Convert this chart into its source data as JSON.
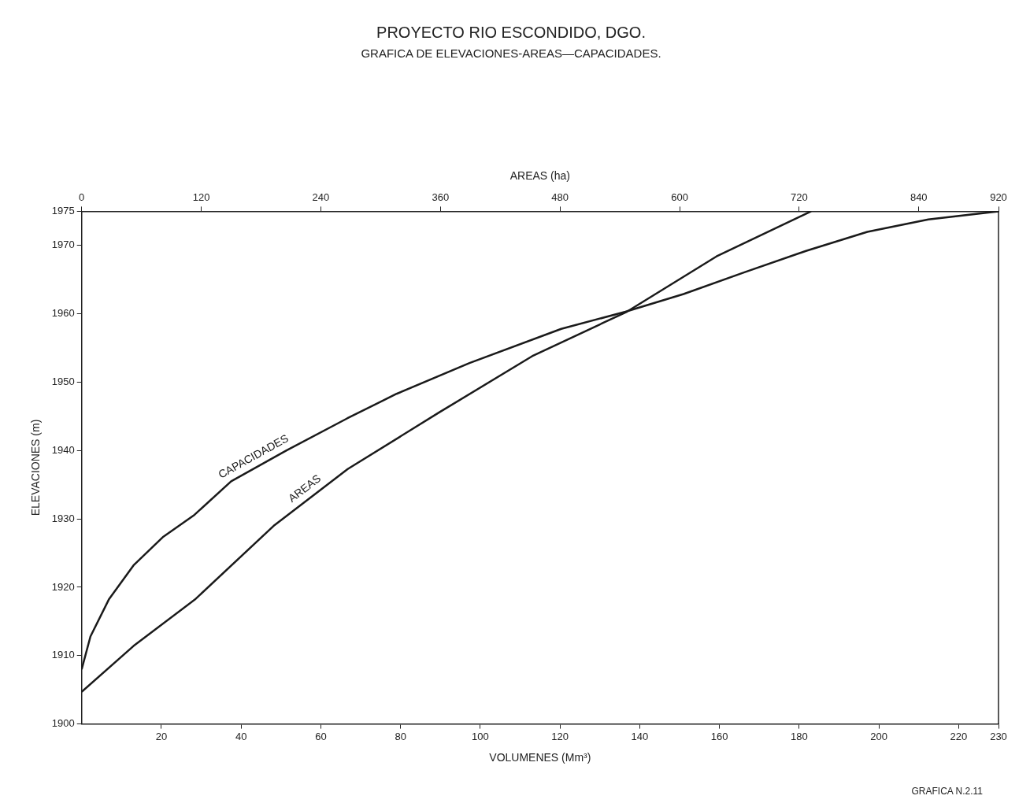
{
  "chart_data": {
    "type": "line",
    "title": "PROYECTO RIO ESCONDIDO, DGO.",
    "subtitle": "GRAFICA DE ELEVACIONES-AREAS—CAPACIDADES.",
    "xlabel": "VOLUMENES (Mm³)",
    "x2label": "AREAS (ha)",
    "ylabel": "ELEVACIONES (m)",
    "series": [
      {
        "name": "CAPACIDADES",
        "color": "#1a1a1a",
        "x": [
          0,
          2.2,
          6.8,
          13,
          20.5,
          28.3,
          37.5,
          51.3,
          66.6,
          79,
          97.3,
          120.3,
          136.4,
          151,
          166.4,
          181.7,
          197.1,
          212.4,
          230
        ],
        "values": [
          1908,
          1912.8,
          1918.2,
          1923.2,
          1927.4,
          1930.6,
          1935.5,
          1940,
          1944.7,
          1948.3,
          1952.8,
          1957.8,
          1960.3,
          1962.9,
          1966.1,
          1969.2,
          1972,
          1973.8,
          1975
        ]
      },
      {
        "name": "AREAS",
        "color": "#1a1a1a",
        "axis": "x2",
        "x": [
          0,
          52,
          113.6,
          193.6,
          267,
          359,
          452,
          547,
          637,
          732
        ],
        "values": [
          1904.7,
          1911.4,
          1918.2,
          1929.1,
          1937.3,
          1945.6,
          1953.8,
          1960.3,
          1968.4,
          1975
        ]
      }
    ],
    "xlim": [
      0,
      230
    ],
    "xticks": [
      20,
      40,
      60,
      80,
      100,
      120,
      140,
      160,
      180,
      200,
      220,
      230
    ],
    "x2lim": [
      0,
      920
    ],
    "x2ticks": [
      0,
      120,
      240,
      360,
      480,
      600,
      720,
      840,
      920
    ],
    "ylim": [
      1900,
      1975
    ],
    "yticks": [
      1900,
      1910,
      1920,
      1930,
      1940,
      1950,
      1960,
      1970,
      1975
    ],
    "annotations": [
      "GRAFICA N.2.11"
    ],
    "grid": false,
    "legend": false,
    "marker": "none",
    "line_style": "solid"
  }
}
